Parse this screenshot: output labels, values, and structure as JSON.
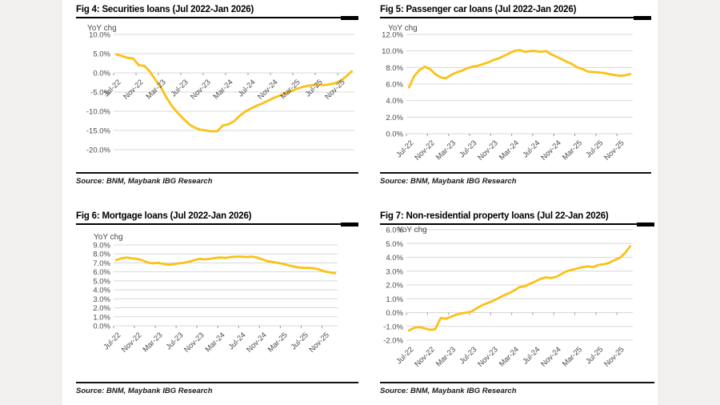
{
  "page": {
    "background": "#ffffff",
    "margin_color": "#f1f0ee",
    "line_color": "#FBC116",
    "grid_color": "#D8D8D8",
    "axis_text_color": "#4a4a4a"
  },
  "chart_data": [
    {
      "id": "fig4",
      "type": "line",
      "title": "Fig 4: Securities loans (Jul 2022-Jan 2026)",
      "ylabel": "YoY chg",
      "source": "Source: BNM, Maybank IBG Research",
      "ylim": [
        -20,
        10
      ],
      "ystep": 5,
      "grid": true,
      "legend_position": "none",
      "x_label_position": "at-zero-axis",
      "x_tick_labels": [
        "Jul-22",
        "Nov-22",
        "Mar-23",
        "Jul-23",
        "Nov-23",
        "Mar-24",
        "Jul-24",
        "Nov-24",
        "Mar-25",
        "Jul-25",
        "Nov-25"
      ],
      "values": [
        4.8,
        4.4,
        3.9,
        3.7,
        2.0,
        1.8,
        0.3,
        -1.9,
        -3.9,
        -6.6,
        -8.8,
        -10.5,
        -12.0,
        -13.4,
        -14.3,
        -14.8,
        -15.0,
        -15.2,
        -15.2,
        -13.7,
        -13.4,
        -12.6,
        -11.2,
        -10.1,
        -9.3,
        -8.6,
        -8.0,
        -7.3,
        -6.6,
        -6.0,
        -5.4,
        -4.9,
        -4.3,
        -3.8,
        -3.4,
        -3.2,
        -3.1,
        -3.2,
        -3.0,
        -2.7,
        -2.1,
        -1.0,
        0.4
      ]
    },
    {
      "id": "fig5",
      "type": "line",
      "title": "Fig 5: Passenger car loans (Jul 2022-Jan 2026)",
      "ylabel": "YoY chg",
      "source": "Source: BNM, Maybank IBG Research",
      "ylim": [
        0,
        12
      ],
      "ystep": 2,
      "grid": true,
      "legend_position": "none",
      "x_label_position": "bottom",
      "x_tick_labels": [
        "Jul-22",
        "Nov-22",
        "Mar-23",
        "Jul-23",
        "Nov-23",
        "Mar-24",
        "Jul-24",
        "Nov-24",
        "Mar-25",
        "Jul-25",
        "Nov-25"
      ],
      "values": [
        5.6,
        7.0,
        7.7,
        8.1,
        7.8,
        7.2,
        6.8,
        6.7,
        7.1,
        7.4,
        7.6,
        7.9,
        8.1,
        8.2,
        8.4,
        8.6,
        8.9,
        9.1,
        9.4,
        9.7,
        10.0,
        10.1,
        9.9,
        10.0,
        10.0,
        9.9,
        10.0,
        9.6,
        9.3,
        9.0,
        8.7,
        8.4,
        8.0,
        7.8,
        7.5,
        7.45,
        7.4,
        7.35,
        7.2,
        7.1,
        7.0,
        7.05,
        7.2
      ]
    },
    {
      "id": "fig6",
      "type": "line",
      "title": "Fig 6: Mortgage loans (Jul 2022-Jan 2026)",
      "ylabel": "YoY chg",
      "source": "Source: BNM, Maybank IBG Research",
      "ylim": [
        0,
        9
      ],
      "ystep": 1,
      "grid": true,
      "legend_position": "none",
      "x_label_position": "bottom",
      "x_tick_labels": [
        "Jul-22",
        "Nov-22",
        "Mar-23",
        "Jul-23",
        "Nov-23",
        "Mar-24",
        "Jul-24",
        "Nov-24",
        "Mar-25",
        "Jul-25",
        "Nov-25"
      ],
      "values": [
        7.3,
        7.5,
        7.6,
        7.5,
        7.45,
        7.3,
        7.05,
        6.95,
        7.0,
        6.9,
        6.8,
        6.85,
        6.95,
        7.0,
        7.15,
        7.3,
        7.45,
        7.4,
        7.45,
        7.55,
        7.6,
        7.55,
        7.65,
        7.7,
        7.7,
        7.65,
        7.7,
        7.6,
        7.4,
        7.2,
        7.1,
        7.0,
        6.9,
        6.75,
        6.6,
        6.5,
        6.45,
        6.45,
        6.4,
        6.25,
        6.05,
        5.95,
        5.85
      ]
    },
    {
      "id": "fig7",
      "type": "line",
      "title": "Fig 7: Non-residential property loans (Jul 22-Jan 2026)",
      "ylabel": "YoY chg",
      "source": "Source: BNM, Maybank IBG Research",
      "ylim": [
        -2,
        6
      ],
      "ystep": 1,
      "grid": true,
      "legend_position": "none",
      "x_label_position": "bottom",
      "x_tick_labels": [
        "Jul-22",
        "Nov-22",
        "Mar-23",
        "Jul-23",
        "Nov-23",
        "Mar-24",
        "Jul-24",
        "Nov-24",
        "Mar-25",
        "Jul-25",
        "Nov-25"
      ],
      "values": [
        -1.3,
        -1.1,
        -1.05,
        -1.15,
        -1.25,
        -1.2,
        -0.4,
        -0.45,
        -0.3,
        -0.15,
        -0.05,
        0.0,
        0.1,
        0.35,
        0.55,
        0.7,
        0.85,
        1.05,
        1.25,
        1.4,
        1.6,
        1.85,
        1.9,
        2.1,
        2.25,
        2.45,
        2.55,
        2.5,
        2.6,
        2.8,
        3.0,
        3.1,
        3.2,
        3.3,
        3.35,
        3.3,
        3.45,
        3.5,
        3.6,
        3.8,
        3.95,
        4.3,
        4.8
      ]
    }
  ]
}
